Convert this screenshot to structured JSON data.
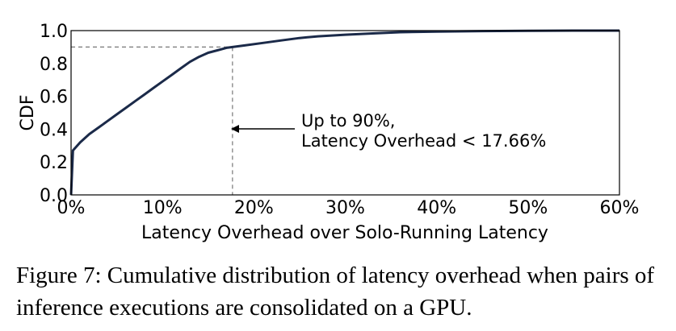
{
  "chart_data": {
    "type": "line",
    "xlabel": "Latency Overhead over Solo-Running Latency",
    "ylabel": "CDF",
    "xlim": [
      0,
      60
    ],
    "ylim": [
      0,
      1
    ],
    "x_ticks": [
      "0%",
      "10%",
      "20%",
      "30%",
      "40%",
      "50%",
      "60%"
    ],
    "y_ticks": [
      "0.0",
      "0.2",
      "0.4",
      "0.6",
      "0.8",
      "1.0"
    ],
    "grid": false,
    "series": [
      {
        "color": "#1b2a49",
        "x": [
          0,
          0.2,
          1,
          2,
          3,
          4,
          5,
          6,
          7,
          8,
          9,
          10,
          11,
          12,
          13,
          14,
          15,
          16,
          17,
          17.66,
          19,
          21,
          23,
          25,
          27,
          30,
          33,
          36,
          40,
          45,
          50,
          55,
          60
        ],
        "y": [
          0,
          0.27,
          0.32,
          0.37,
          0.41,
          0.45,
          0.49,
          0.53,
          0.57,
          0.61,
          0.65,
          0.69,
          0.73,
          0.77,
          0.81,
          0.84,
          0.865,
          0.88,
          0.895,
          0.9,
          0.91,
          0.925,
          0.94,
          0.955,
          0.965,
          0.975,
          0.983,
          0.99,
          0.994,
          0.997,
          0.999,
          1.0,
          1.0
        ]
      }
    ],
    "reference_lines": {
      "x": 17.66,
      "y": 0.9,
      "style": "dashed"
    },
    "annotation": {
      "lines": [
        "Up to 90%,",
        "Latency Overhead < 17.66%"
      ],
      "arrow_to": "vertical-reference-line"
    }
  },
  "caption": "Figure 7: Cumulative distribution of latency overhead when pairs of inference executions are consolidated on a GPU."
}
